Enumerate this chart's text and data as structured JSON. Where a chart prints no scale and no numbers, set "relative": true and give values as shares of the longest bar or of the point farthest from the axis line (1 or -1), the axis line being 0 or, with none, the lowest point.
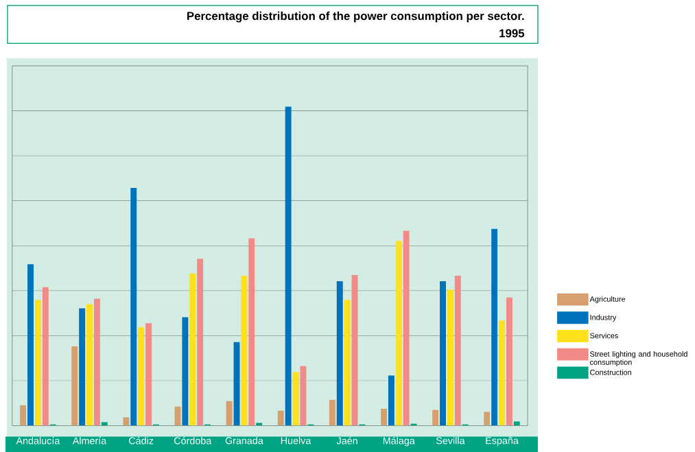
{
  "chart_data": {
    "type": "bar",
    "title": "Percentage distribution of the power consumption per sector.",
    "subtitle": "1995",
    "categories": [
      "Andalucía",
      "Almería",
      "Cádiz",
      "Córdoba",
      "Granada",
      "Huelva",
      "Jaén",
      "Málaga",
      "Sevilla",
      "España"
    ],
    "relative": true,
    "grid": "y",
    "legend": "right",
    "series": [
      {
        "name": "Agriculture",
        "color": "#d5a06e",
        "values": [
          0.064,
          0.249,
          0.026,
          0.06,
          0.077,
          0.047,
          0.081,
          0.053,
          0.049,
          0.043
        ]
      },
      {
        "name": "Industry",
        "color": "#0072bc",
        "values": [
          0.506,
          0.368,
          0.745,
          0.34,
          0.262,
          1,
          0.453,
          0.157,
          0.453,
          0.617
        ]
      },
      {
        "name": "Services",
        "color": "#ffe01b",
        "values": [
          0.394,
          0.381,
          0.309,
          0.477,
          0.47,
          0.168,
          0.394,
          0.579,
          0.426,
          0.33
        ]
      },
      {
        "name": "Street lighting and household consumption",
        "color": "#f28b87",
        "values": [
          0.434,
          0.398,
          0.321,
          0.523,
          0.587,
          0.187,
          0.472,
          0.611,
          0.47,
          0.402
        ]
      },
      {
        "name": "Construction",
        "color": "#00a383",
        "values": [
          0.004,
          0.011,
          0.004,
          0.004,
          0.009,
          0.004,
          0.004,
          0.006,
          0.004,
          0.013
        ]
      }
    ]
  }
}
